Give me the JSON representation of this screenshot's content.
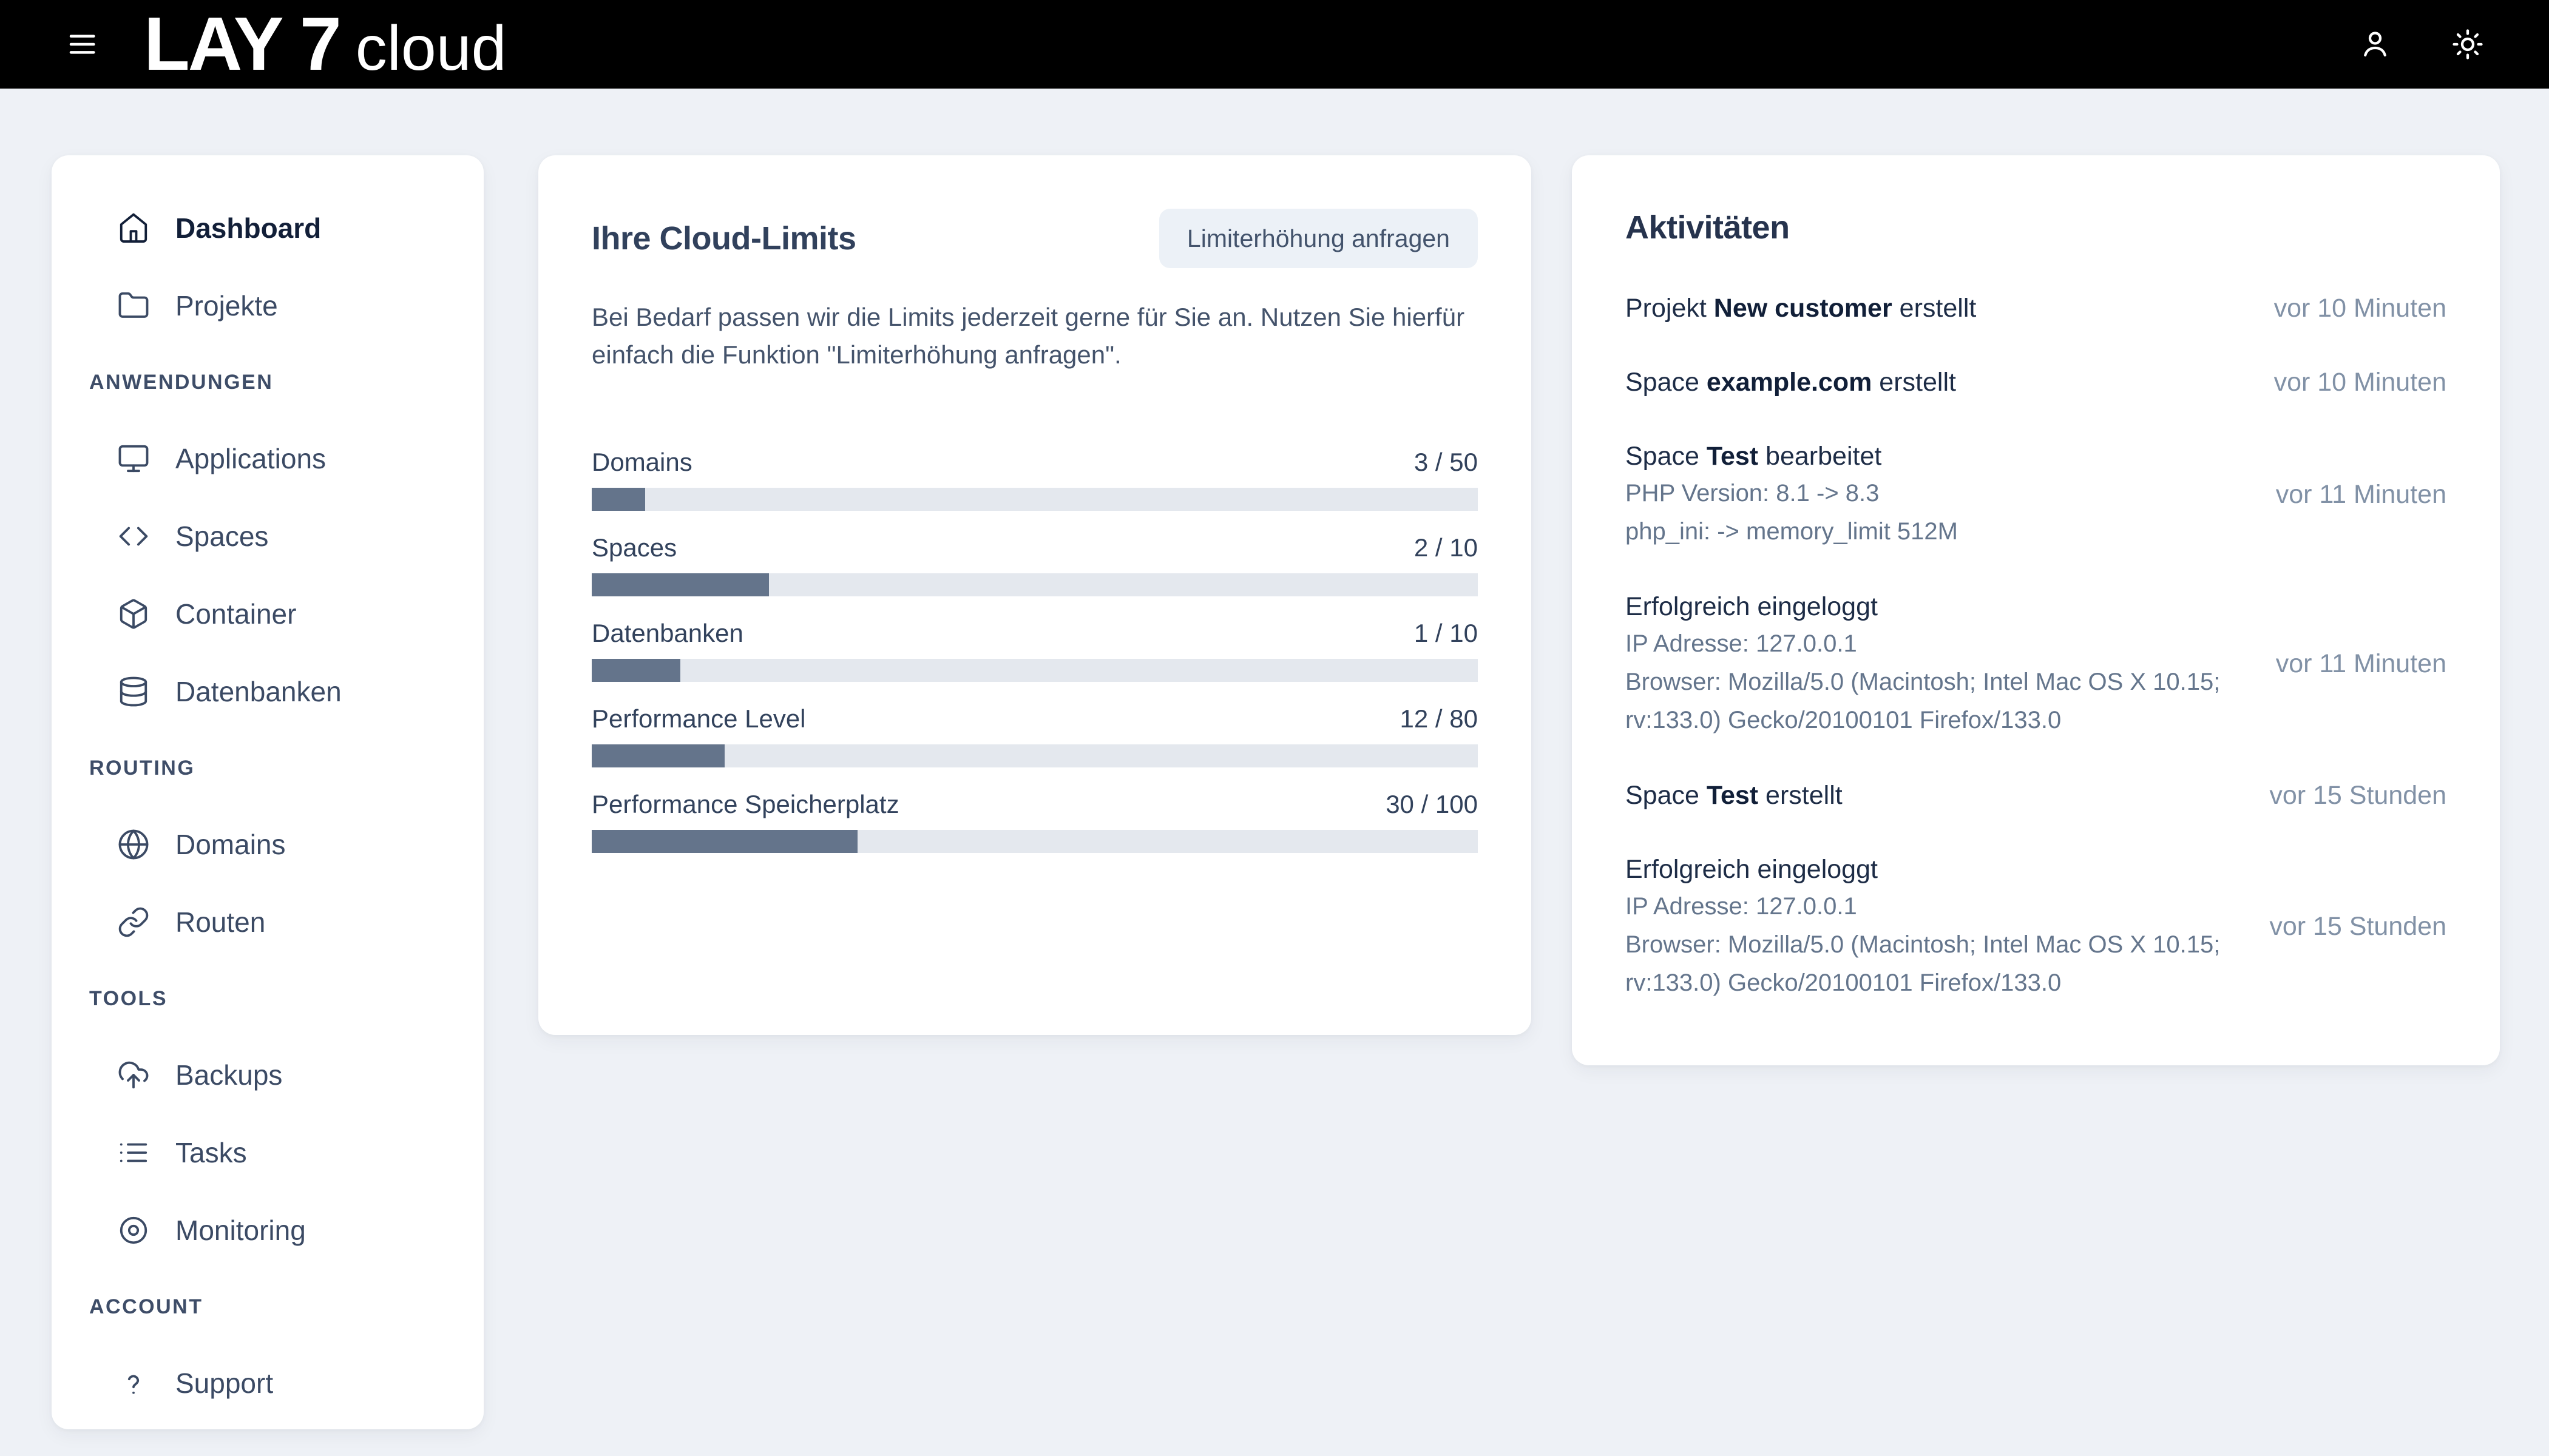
{
  "header": {
    "logo_primary": "LAY 7",
    "logo_secondary": "cloud",
    "menu_icon": "hamburger-menu-icon",
    "user_icon": "user-icon",
    "theme_icon": "sun-icon"
  },
  "colors": {
    "header_bg": "#000000",
    "page_bg": "#eef1f6",
    "card_bg": "#ffffff",
    "bar_fill": "#64748b",
    "bar_track": "#e4e8ee",
    "button_bg": "#ecf1f7"
  },
  "sidebar": {
    "items": [
      {
        "type": "item",
        "label": "Dashboard",
        "icon": "home-icon",
        "active": true
      },
      {
        "type": "item",
        "label": "Projekte",
        "icon": "folder-icon",
        "active": false
      },
      {
        "type": "section",
        "label": "ANWENDUNGEN"
      },
      {
        "type": "item",
        "label": "Applications",
        "icon": "monitor-icon",
        "active": false
      },
      {
        "type": "item",
        "label": "Spaces",
        "icon": "code-icon",
        "active": false
      },
      {
        "type": "item",
        "label": "Container",
        "icon": "box-icon",
        "active": false
      },
      {
        "type": "item",
        "label": "Datenbanken",
        "icon": "database-icon",
        "active": false
      },
      {
        "type": "section",
        "label": "ROUTING"
      },
      {
        "type": "item",
        "label": "Domains",
        "icon": "globe-icon",
        "active": false
      },
      {
        "type": "item",
        "label": "Routen",
        "icon": "link-icon",
        "active": false
      },
      {
        "type": "section",
        "label": "TOOLS"
      },
      {
        "type": "item",
        "label": "Backups",
        "icon": "cloud-upload-icon",
        "active": false
      },
      {
        "type": "item",
        "label": "Tasks",
        "icon": "list-icon",
        "active": false
      },
      {
        "type": "item",
        "label": "Monitoring",
        "icon": "circle-dot-icon",
        "active": false
      },
      {
        "type": "section",
        "label": "ACCOUNT"
      },
      {
        "type": "item",
        "label": "Support",
        "icon": "question-icon",
        "active": false
      }
    ]
  },
  "limits_card": {
    "title": "Ihre Cloud-Limits",
    "button_label": "Limiterhöhung anfragen",
    "description_line1": "Bei Bedarf passen wir die Limits jederzeit gerne für Sie an. Nutzen Sie hierfür",
    "description_line2": "einfach die Funktion \"Limiterhöhung anfragen\".",
    "limits": [
      {
        "label": "Domains",
        "used": 3,
        "max": 50,
        "display": "3 / 50",
        "percent": 6
      },
      {
        "label": "Spaces",
        "used": 2,
        "max": 10,
        "display": "2 / 10",
        "percent": 20
      },
      {
        "label": "Datenbanken",
        "used": 1,
        "max": 10,
        "display": "1 / 10",
        "percent": 10
      },
      {
        "label": "Performance Level",
        "used": 12,
        "max": 80,
        "display": "12 / 80",
        "percent": 15
      },
      {
        "label": "Performance Speicherplatz",
        "used": 30,
        "max": 100,
        "display": "30 / 100",
        "percent": 30
      }
    ]
  },
  "activities_card": {
    "title": "Aktivitäten",
    "items": [
      {
        "title_prefix": "Projekt ",
        "title_strong": "New customer",
        "title_suffix": " erstellt",
        "details": [],
        "time": "vor 10 Minuten"
      },
      {
        "title_prefix": "Space ",
        "title_strong": "example.com",
        "title_suffix": " erstellt",
        "details": [],
        "time": "vor 10 Minuten"
      },
      {
        "title_prefix": "Space ",
        "title_strong": "Test",
        "title_suffix": " bearbeitet",
        "details": [
          "PHP Version: 8.1 -> 8.3",
          "php_ini: -> memory_limit 512M"
        ],
        "time": "vor 11 Minuten"
      },
      {
        "title_prefix": "Erfolgreich eingeloggt",
        "title_strong": "",
        "title_suffix": "",
        "details": [
          "IP Adresse: 127.0.0.1",
          "Browser: Mozilla/5.0 (Macintosh; Intel Mac OS X 10.15;",
          "rv:133.0) Gecko/20100101 Firefox/133.0"
        ],
        "time": "vor 11 Minuten"
      },
      {
        "title_prefix": "Space ",
        "title_strong": "Test",
        "title_suffix": " erstellt",
        "details": [],
        "time": "vor 15 Stunden"
      },
      {
        "title_prefix": "Erfolgreich eingeloggt",
        "title_strong": "",
        "title_suffix": "",
        "details": [
          "IP Adresse: 127.0.0.1",
          "Browser: Mozilla/5.0 (Macintosh; Intel Mac OS X 10.15;",
          "rv:133.0) Gecko/20100101 Firefox/133.0"
        ],
        "time": "vor 15 Stunden"
      }
    ]
  }
}
